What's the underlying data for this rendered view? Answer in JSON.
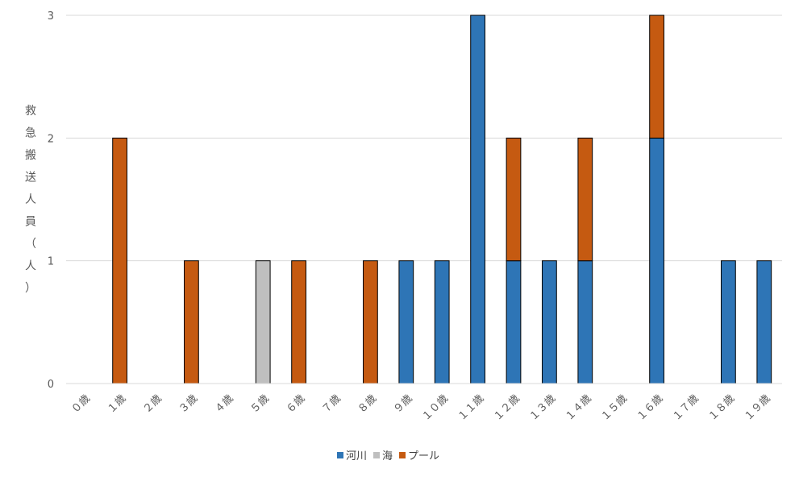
{
  "chart_data": {
    "type": "bar",
    "stacked": true,
    "ylabel": "救急搬送人員（人）",
    "ylim": [
      0,
      3
    ],
    "yticks": [
      0,
      1,
      2,
      3
    ],
    "grid": true,
    "legend_position": "bottom",
    "categories": [
      "０歳",
      "１歳",
      "２歳",
      "３歳",
      "４歳",
      "５歳",
      "６歳",
      "７歳",
      "８歳",
      "９歳",
      "１０歳",
      "１１歳",
      "１２歳",
      "１３歳",
      "１４歳",
      "１５歳",
      "１６歳",
      "１７歳",
      "１８歳",
      "１９歳"
    ],
    "series": [
      {
        "name": "河川",
        "color": "#2E75B6",
        "values": [
          0,
          0,
          0,
          0,
          0,
          0,
          0,
          0,
          0,
          1,
          1,
          3,
          1,
          1,
          1,
          0,
          2,
          0,
          1,
          1
        ]
      },
      {
        "name": "海",
        "color": "#BFBFBF",
        "values": [
          0,
          0,
          0,
          0,
          0,
          1,
          0,
          0,
          0,
          0,
          0,
          0,
          0,
          0,
          0,
          0,
          0,
          0,
          0,
          0
        ]
      },
      {
        "name": "プール",
        "color": "#C55A11",
        "values": [
          0,
          2,
          0,
          1,
          0,
          0,
          1,
          0,
          1,
          0,
          0,
          0,
          1,
          0,
          1,
          0,
          1,
          0,
          0,
          0
        ]
      }
    ]
  }
}
